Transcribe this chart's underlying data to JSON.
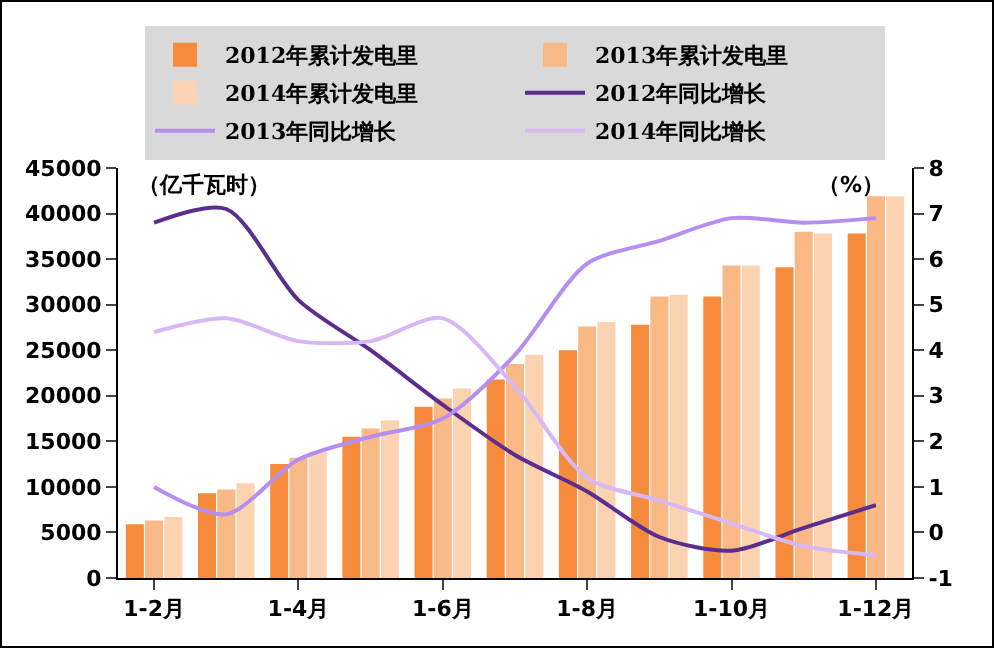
{
  "chart_data": {
    "type": "bar",
    "categories": [
      "1-2月",
      null,
      "1-4月",
      null,
      "1-6月",
      null,
      "1-8月",
      null,
      "1-10月",
      null,
      "1-12月"
    ],
    "ylabel": "（亿千瓦时）",
    "y2label": "（%）",
    "series": [
      {
        "name": "2012年累计发电里",
        "color": "#f68b3c",
        "values": [
          5900,
          9300,
          12500,
          15500,
          18800,
          21800,
          25000,
          27800,
          30900,
          34100,
          37800
        ]
      },
      {
        "name": "2013年累计发电里",
        "color": "#f9b987",
        "values": [
          6300,
          9700,
          13200,
          16400,
          19700,
          23500,
          27600,
          30900,
          34300,
          38000,
          41900
        ]
      },
      {
        "name": "2014年累计发电里",
        "color": "#fbd3b0",
        "values": [
          6700,
          10400,
          13800,
          17300,
          20800,
          24500,
          28100,
          31100,
          34300,
          37800,
          41900
        ]
      },
      {
        "name": "2012年同比增长",
        "type": "line",
        "axis": "y2",
        "color": "#5b2d8e",
        "values": [
          6.8,
          7.1,
          5.1,
          4.0,
          2.8,
          1.7,
          0.9,
          -0.1,
          -0.4,
          0.1,
          0.6
        ]
      },
      {
        "name": "2013年同比增长",
        "type": "line",
        "axis": "y2",
        "color": "#b58ef0",
        "values": [
          1.0,
          0.4,
          1.6,
          2.1,
          2.5,
          3.9,
          5.9,
          6.4,
          6.9,
          6.8,
          6.9
        ]
      },
      {
        "name": "2014年同比增长",
        "type": "line",
        "axis": "y2",
        "color": "#d7b8f5",
        "values": [
          4.4,
          4.7,
          4.2,
          4.2,
          4.7,
          3.2,
          1.2,
          0.7,
          0.2,
          -0.3,
          -0.5
        ]
      }
    ],
    "ylim": [
      0,
      45000
    ],
    "yticks": [
      0,
      5000,
      10000,
      15000,
      20000,
      25000,
      30000,
      35000,
      40000,
      45000
    ],
    "y2lim": [
      -1,
      8
    ],
    "y2ticks": [
      -1,
      0,
      1,
      2,
      3,
      4,
      5,
      6,
      7,
      8
    ],
    "grid": false,
    "legend": "top",
    "marker": "none",
    "line_style": "solid"
  }
}
